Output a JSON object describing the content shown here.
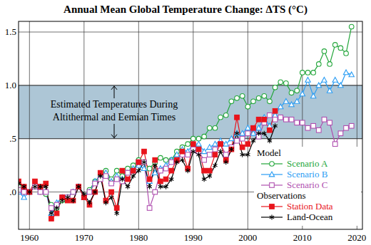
{
  "chart_data": {
    "type": "line",
    "title": "Annual Mean Global Temperature Change: ΔTS (°C)",
    "x": [
      1958,
      1959,
      1960,
      1961,
      1962,
      1963,
      1964,
      1965,
      1966,
      1967,
      1968,
      1969,
      1970,
      1971,
      1972,
      1973,
      1974,
      1975,
      1976,
      1977,
      1978,
      1979,
      1980,
      1981,
      1982,
      1983,
      1984,
      1985,
      1986,
      1987,
      1988,
      1989,
      1990,
      1991,
      1992,
      1993,
      1994,
      1995,
      1996,
      1997,
      1998,
      1999,
      2000,
      2001,
      2002,
      2003,
      2004,
      2005,
      2006,
      2007,
      2008,
      2009,
      2010,
      2011,
      2012,
      2013,
      2014,
      2015,
      2016,
      2017,
      2018,
      2019
    ],
    "xlim": [
      1958,
      2021
    ],
    "xticks": [
      1960,
      1970,
      1980,
      1990,
      2000,
      2010,
      2020
    ],
    "ylim": [
      -0.35,
      1.6
    ],
    "yticks": [
      {
        "value": 0,
        "label": ".0"
      },
      {
        "value": 0.5,
        "label": ".5"
      },
      {
        "value": 1,
        "label": "1.0"
      },
      1.5
    ],
    "grid": true,
    "legend": "lower right",
    "annotation": {
      "text": [
        "Estimated Temperatures During",
        "Altithermal and Eemian Times"
      ],
      "y_range": [
        0.5,
        1.0
      ]
    },
    "series": [
      {
        "name": "Scenario A",
        "group": "Model",
        "color": "#22a63a",
        "marker": "circle-open",
        "line_style": "solid",
        "values": [
          0.05,
          0.0,
          0.0,
          0.05,
          0.0,
          -0.02,
          -0.12,
          -0.15,
          -0.08,
          -0.05,
          0.0,
          0.05,
          -0.05,
          0.02,
          0.1,
          0.15,
          0.2,
          0.12,
          0.2,
          0.15,
          0.22,
          0.25,
          0.3,
          0.28,
          0.22,
          0.28,
          0.32,
          0.3,
          0.3,
          0.38,
          0.42,
          0.45,
          0.5,
          0.5,
          0.52,
          0.6,
          0.6,
          0.7,
          0.72,
          0.85,
          0.88,
          0.9,
          0.8,
          0.85,
          0.88,
          0.9,
          0.85,
          0.98,
          1.03,
          1.02,
          0.93,
          0.95,
          1.12,
          1.12,
          1.12,
          1.2,
          1.32,
          1.2,
          1.38,
          1.35,
          1.3,
          1.55
        ]
      },
      {
        "name": "Scenario B",
        "group": "Model",
        "color": "#2a9df4",
        "marker": "triangle-open",
        "line_style": "solid",
        "values": [
          0.0,
          -0.05,
          0.0,
          0.05,
          0.0,
          0.0,
          -0.2,
          -0.1,
          -0.05,
          -0.05,
          0.0,
          0.05,
          -0.05,
          0.0,
          0.1,
          0.15,
          0.18,
          0.1,
          0.15,
          0.12,
          0.18,
          0.22,
          0.25,
          0.22,
          0.1,
          0.18,
          0.22,
          0.25,
          0.3,
          0.35,
          0.4,
          0.38,
          0.45,
          0.45,
          0.38,
          0.42,
          0.45,
          0.48,
          0.45,
          0.5,
          0.55,
          0.55,
          0.6,
          0.55,
          0.6,
          0.7,
          0.62,
          0.72,
          0.8,
          0.85,
          0.82,
          0.85,
          0.92,
          1.05,
          0.9,
          1.0,
          1.05,
          0.95,
          1.05,
          1.0,
          1.12,
          1.1
        ]
      },
      {
        "name": "Scenario C",
        "group": "Model",
        "color": "#b050b0",
        "marker": "square-open",
        "line_style": "solid",
        "values": [
          0.02,
          0.0,
          0.0,
          0.05,
          0.0,
          0.0,
          -0.15,
          -0.12,
          -0.05,
          -0.05,
          0.0,
          0.05,
          -0.05,
          0.0,
          0.08,
          0.12,
          0.15,
          0.08,
          0.12,
          0.1,
          0.18,
          0.2,
          0.28,
          0.28,
          -0.15,
          0.0,
          0.2,
          0.22,
          0.28,
          0.3,
          0.35,
          0.35,
          0.4,
          0.38,
          0.3,
          0.35,
          0.4,
          0.45,
          0.35,
          0.42,
          0.48,
          0.5,
          0.55,
          0.6,
          0.52,
          0.65,
          0.72,
          0.68,
          0.7,
          0.68,
          0.68,
          0.65,
          0.65,
          0.6,
          0.62,
          0.58,
          0.68,
          0.65,
          0.45,
          0.55,
          0.6,
          0.62
        ]
      },
      {
        "name": "Station Data",
        "group": "Observations",
        "color": "#e8141c",
        "marker": "square",
        "line_style": "solid",
        "values": [
          0.1,
          0.05,
          0.0,
          0.1,
          0.05,
          0.08,
          -0.25,
          -0.2,
          -0.05,
          -0.08,
          -0.08,
          0.05,
          -0.05,
          -0.12,
          0.0,
          0.18,
          -0.08,
          0.0,
          -0.15,
          0.2,
          0.12,
          0.2,
          0.28,
          0.38,
          0.12,
          0.3,
          0.1,
          0.12,
          0.2,
          0.3,
          0.38,
          0.22,
          0.45,
          0.4,
          0.2,
          0.2,
          0.35,
          0.45,
          0.3,
          0.4,
          0.7,
          0.42,
          0.45,
          0.6,
          0.68,
          0.68,
          0.58,
          0.76,
          null,
          null,
          null,
          null,
          null,
          null,
          null,
          null,
          null,
          null,
          null,
          null,
          null,
          null
        ]
      },
      {
        "name": "Land-Ocean",
        "group": "Observations",
        "color": "#000000",
        "marker": "asterisk",
        "line_style": "solid",
        "values": [
          0.08,
          0.05,
          0.0,
          0.05,
          0.05,
          0.05,
          -0.2,
          -0.15,
          -0.08,
          -0.05,
          -0.08,
          0.05,
          -0.02,
          -0.1,
          0.0,
          0.15,
          -0.1,
          -0.05,
          -0.2,
          0.12,
          0.05,
          0.15,
          0.2,
          0.28,
          0.05,
          0.25,
          0.05,
          0.05,
          0.12,
          0.28,
          0.3,
          0.2,
          0.38,
          0.35,
          0.12,
          0.15,
          0.25,
          0.38,
          0.28,
          0.4,
          0.55,
          0.35,
          0.35,
          0.48,
          0.55,
          0.55,
          0.48,
          0.62,
          null,
          null,
          null,
          null,
          null,
          null,
          null,
          null,
          null,
          null,
          null,
          null,
          null,
          null
        ]
      }
    ]
  }
}
